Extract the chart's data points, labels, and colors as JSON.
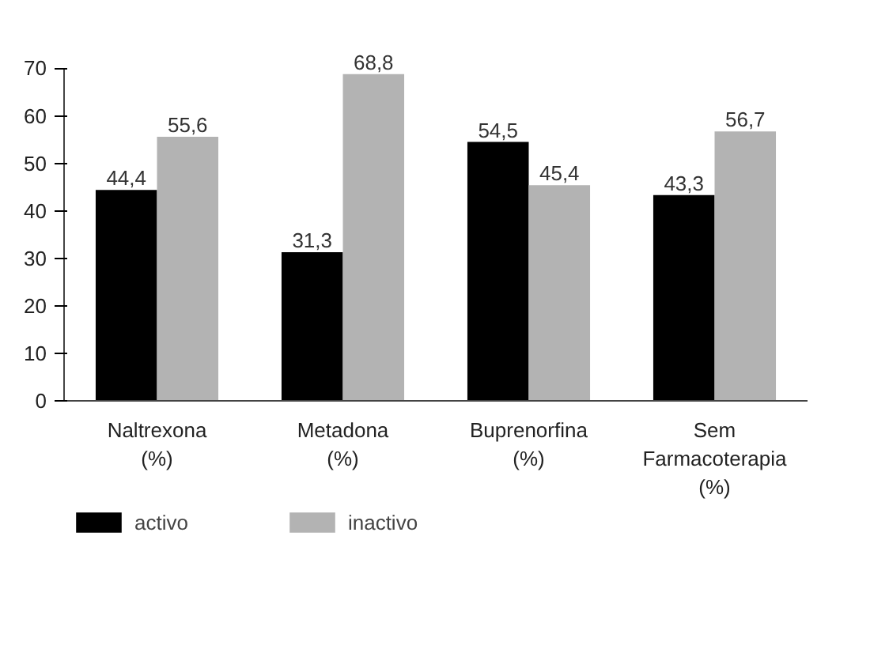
{
  "chart_data": {
    "type": "bar",
    "categories": [
      "Naltrexona\n(%)",
      "Metadona\n(%)",
      "Buprenorfina\n(%)",
      "Sem\nFarmacoterapia\n(%)"
    ],
    "series": [
      {
        "name": "activo",
        "color": "#000000",
        "values": [
          44.4,
          31.3,
          54.5,
          43.3
        ],
        "value_labels": [
          "44,4",
          "31,3",
          "54,5",
          "43,3"
        ]
      },
      {
        "name": "inactivo",
        "color": "#b3b3b3",
        "values": [
          55.6,
          68.8,
          45.4,
          56.7
        ],
        "value_labels": [
          "55,6",
          "68,8",
          "45,4",
          "56,7"
        ]
      }
    ],
    "ylim": [
      0,
      70
    ],
    "yticks": [
      0,
      10,
      20,
      30,
      40,
      50,
      60,
      70
    ],
    "data_labels": true,
    "grid": false,
    "legend": "bottom left"
  }
}
